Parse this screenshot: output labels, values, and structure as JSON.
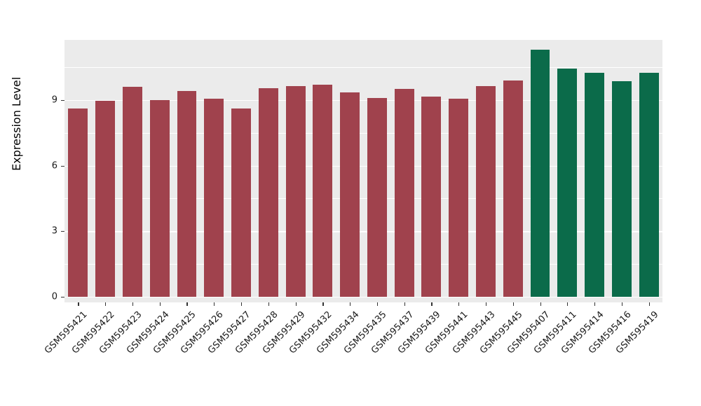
{
  "chart_data": {
    "type": "bar",
    "title": "",
    "xlabel": "",
    "ylabel": "Expression Level",
    "ylim": [
      0,
      11.75
    ],
    "yticks": [
      0,
      3,
      6,
      9
    ],
    "yticks_minor": [
      1.5,
      4.5,
      7.5,
      10.5
    ],
    "grid": true,
    "legend_position": "none",
    "categories": [
      "GSM595421",
      "GSM595422",
      "GSM595423",
      "GSM595424",
      "GSM595425",
      "GSM595426",
      "GSM595427",
      "GSM595428",
      "GSM595429",
      "GSM595432",
      "GSM595434",
      "GSM595435",
      "GSM595437",
      "GSM595439",
      "GSM595441",
      "GSM595443",
      "GSM595445",
      "GSM595407",
      "GSM595411",
      "GSM595414",
      "GSM595416",
      "GSM595419"
    ],
    "values": [
      8.6,
      8.95,
      9.6,
      9.0,
      9.4,
      9.05,
      8.6,
      9.55,
      9.65,
      9.7,
      9.35,
      9.1,
      9.5,
      9.15,
      9.05,
      9.65,
      9.9,
      11.3,
      10.45,
      10.25,
      9.85,
      10.25
    ],
    "bar_groups": [
      "red",
      "red",
      "red",
      "red",
      "red",
      "red",
      "red",
      "red",
      "red",
      "red",
      "red",
      "red",
      "red",
      "red",
      "red",
      "red",
      "red",
      "green",
      "green",
      "green",
      "green",
      "green"
    ],
    "colors": {
      "red": "#A0424D",
      "green": "#0B6B4A"
    },
    "panel_background": "#EBEBEB",
    "gridline_color": "#FFFFFF"
  }
}
